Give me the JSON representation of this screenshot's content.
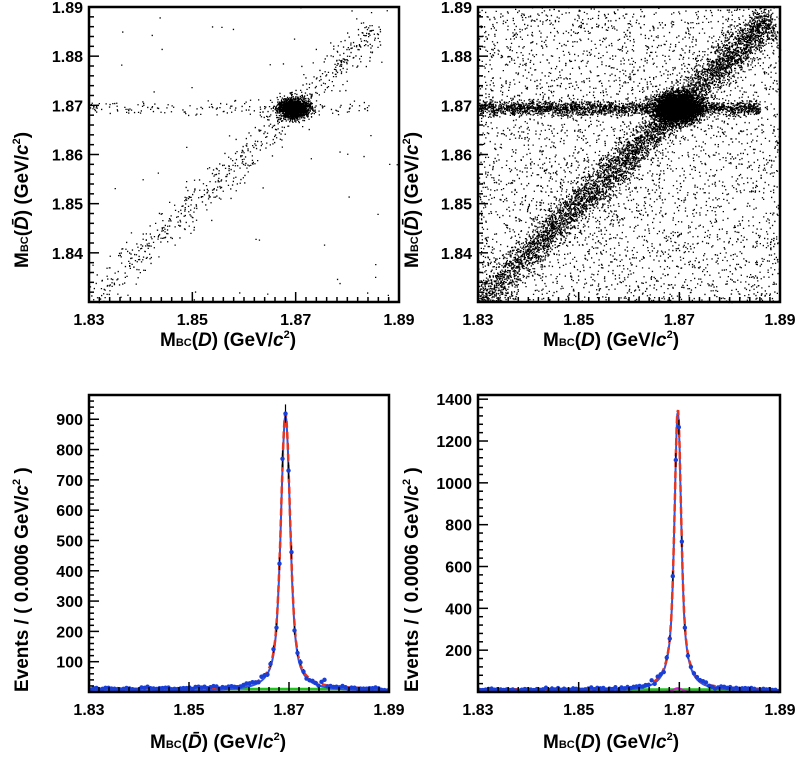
{
  "chart_data": [
    {
      "type": "scatter",
      "panel": "top-left",
      "xlabel": "M_BC(D) (GeV/c²)",
      "ylabel": "M_BC(D̄) (GeV/c²)",
      "xlim": [
        1.83,
        1.89
      ],
      "ylim": [
        1.83,
        1.89
      ],
      "xticks": [
        "1.83",
        "1.85",
        "1.87",
        "1.89"
      ],
      "yticks": [
        "1.84",
        "1.85",
        "1.86",
        "1.87",
        "1.88",
        "1.89"
      ],
      "density": "sparse",
      "clusters": [
        {
          "kind": "peak",
          "center": [
            1.8695,
            1.8695
          ],
          "sigma": 0.0012,
          "points": 1800
        },
        {
          "kind": "horizontal-band",
          "y": 1.8695,
          "x_range": [
            1.83,
            1.885
          ],
          "points": 160
        },
        {
          "kind": "diagonal-band",
          "from": [
            1.83,
            1.83
          ],
          "to": [
            1.886,
            1.886
          ],
          "points": 700
        },
        {
          "kind": "uniform-background",
          "points": 60
        }
      ]
    },
    {
      "type": "scatter",
      "panel": "top-right",
      "xlabel": "M_BC(D) (GeV/c²)",
      "ylabel": "M_BC(D̄) (GeV/c²)",
      "xlim": [
        1.83,
        1.89
      ],
      "ylim": [
        1.83,
        1.89
      ],
      "xticks": [
        "1.83",
        "1.85",
        "1.87",
        "1.89"
      ],
      "yticks": [
        "1.84",
        "1.85",
        "1.86",
        "1.87",
        "1.88",
        "1.89"
      ],
      "density": "dense",
      "clusters": [
        {
          "kind": "peak",
          "center": [
            1.8695,
            1.8695
          ],
          "sigma": 0.0018,
          "points": 4500
        },
        {
          "kind": "horizontal-band",
          "y": 1.8695,
          "x_range": [
            1.83,
            1.886
          ],
          "points": 2200
        },
        {
          "kind": "diagonal-band",
          "from": [
            1.83,
            1.83
          ],
          "to": [
            1.888,
            1.888
          ],
          "points": 5200
        },
        {
          "kind": "uniform-background",
          "points": 3800
        }
      ]
    },
    {
      "type": "line",
      "panel": "bottom-left",
      "xlabel": "M_BC(D̄) (GeV/c²)",
      "ylabel": "Events / ( 0.0006 GeV/c² )",
      "xlim": [
        1.83,
        1.89
      ],
      "ylim": [
        0,
        980
      ],
      "xticks": [
        "1.83",
        "1.85",
        "1.87",
        "1.89"
      ],
      "yticks": [
        100,
        200,
        300,
        400,
        500,
        600,
        700,
        800,
        900
      ],
      "peak": {
        "mean": 1.8693,
        "height": 910,
        "sigma_core": 0.00085,
        "tail_width": 0.0013
      },
      "background_level": 10,
      "series": [
        {
          "role": "data",
          "color": "#1a3fd6",
          "style": "points with error bars"
        },
        {
          "role": "total-fit",
          "color": "#e8351f",
          "style": "dashed"
        },
        {
          "role": "signal",
          "color": "#2d55e8",
          "style": "solid"
        },
        {
          "role": "background",
          "color": "#1fc41f",
          "style": "solid"
        }
      ]
    },
    {
      "type": "line",
      "panel": "bottom-right",
      "xlabel": "M_BC(D) (GeV/c²)",
      "ylabel": "Events / ( 0.0006 GeV/c² )",
      "xlim": [
        1.83,
        1.89
      ],
      "ylim": [
        0,
        1420
      ],
      "xticks": [
        "1.83",
        "1.85",
        "1.87",
        "1.89"
      ],
      "yticks": [
        200,
        400,
        600,
        800,
        1000,
        1200,
        1400
      ],
      "peak": {
        "mean": 1.8697,
        "height": 1340,
        "sigma_core": 0.00055,
        "tail_width": 0.0011
      },
      "background_level": 12,
      "series": [
        {
          "role": "data",
          "color": "#1a3fd6",
          "style": "points with error bars"
        },
        {
          "role": "total-fit",
          "color": "#e8351f",
          "style": "dashed"
        },
        {
          "role": "signal",
          "color": "#2d55e8",
          "style": "solid"
        },
        {
          "role": "peaking-background",
          "color": "#d21fd2",
          "style": "solid"
        },
        {
          "role": "background",
          "color": "#1fc41f",
          "style": "solid"
        }
      ]
    }
  ]
}
